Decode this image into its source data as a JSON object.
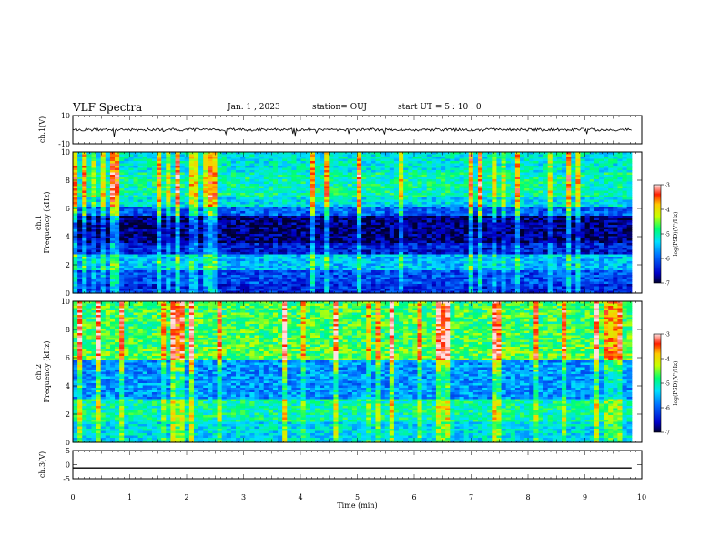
{
  "header": {
    "title": "VLF Spectra",
    "date": "Jan. 1 , 2023",
    "station": "station= OUJ",
    "start_ut": "start UT =  5 : 10 : 0"
  },
  "chart_data": [
    {
      "type": "line",
      "panel": "ch1-waveform",
      "ylabel": "ch.1(V)",
      "ylim": [
        -10,
        10
      ],
      "yticks": [
        "10",
        "-10"
      ],
      "xlim": [
        0,
        10
      ],
      "trace_level": 0,
      "trace_end": 9.82
    },
    {
      "type": "heatmap",
      "panel": "ch1-spectrogram",
      "ylabel": "ch.1\nFrequency (kHz)",
      "ylim": [
        0,
        10
      ],
      "yticks": [
        "0",
        "2",
        "4",
        "6",
        "8",
        "10"
      ],
      "xlim": [
        0,
        10
      ],
      "data_end": 9.82,
      "colorbar": {
        "label": "log(PSD)(V²/Hz)",
        "range": [
          -7,
          -3
        ],
        "ticks": [
          "-3",
          "-4",
          "-5",
          "-6",
          "-7"
        ]
      },
      "bands": [
        {
          "from": 0,
          "to": 0.6,
          "level": -6.3
        },
        {
          "from": 0.6,
          "to": 1.6,
          "level": -6.1
        },
        {
          "from": 1.6,
          "to": 2.8,
          "level": -5.5
        },
        {
          "from": 2.8,
          "to": 3.6,
          "level": -6.4
        },
        {
          "from": 3.6,
          "to": 5.5,
          "level": -6.8
        },
        {
          "from": 5.5,
          "to": 6.2,
          "level": -6.0
        },
        {
          "from": 6.2,
          "to": 6.8,
          "level": -5.3
        },
        {
          "from": 6.8,
          "to": 8.5,
          "level": -5.0
        },
        {
          "from": 8.5,
          "to": 10,
          "level": -5.2
        }
      ]
    },
    {
      "type": "heatmap",
      "panel": "ch2-spectrogram",
      "ylabel": "ch.2\nFrequency (kHz)",
      "ylim": [
        0,
        10
      ],
      "yticks": [
        "0",
        "2",
        "4",
        "6",
        "8",
        "10"
      ],
      "xlim": [
        0,
        10
      ],
      "data_end": 9.82,
      "colorbar": {
        "label": "log(PSD)(V²/Hz)",
        "range": [
          -7,
          -3
        ],
        "ticks": [
          "-3",
          "-4",
          "-5",
          "-6",
          "-7"
        ]
      },
      "bands": [
        {
          "from": 0,
          "to": 1.5,
          "level": -5.3
        },
        {
          "from": 1.5,
          "to": 3.0,
          "level": -5.0
        },
        {
          "from": 3.0,
          "to": 5.8,
          "level": -5.7
        },
        {
          "from": 5.8,
          "to": 6.8,
          "level": -4.6
        },
        {
          "from": 6.8,
          "to": 10,
          "level": -4.7
        }
      ]
    },
    {
      "type": "line",
      "panel": "ch3-waveform",
      "ylabel": "ch.3(V)",
      "ylim": [
        -5,
        5
      ],
      "yticks": [
        "5",
        "0",
        "-5"
      ],
      "xlim": [
        0,
        10
      ],
      "xlabel": "Time (min)",
      "xticks": [
        "0",
        "1",
        "2",
        "3",
        "4",
        "5",
        "6",
        "7",
        "8",
        "9",
        "10"
      ],
      "trace_level": -1.2,
      "trace_end": 9.82
    }
  ]
}
